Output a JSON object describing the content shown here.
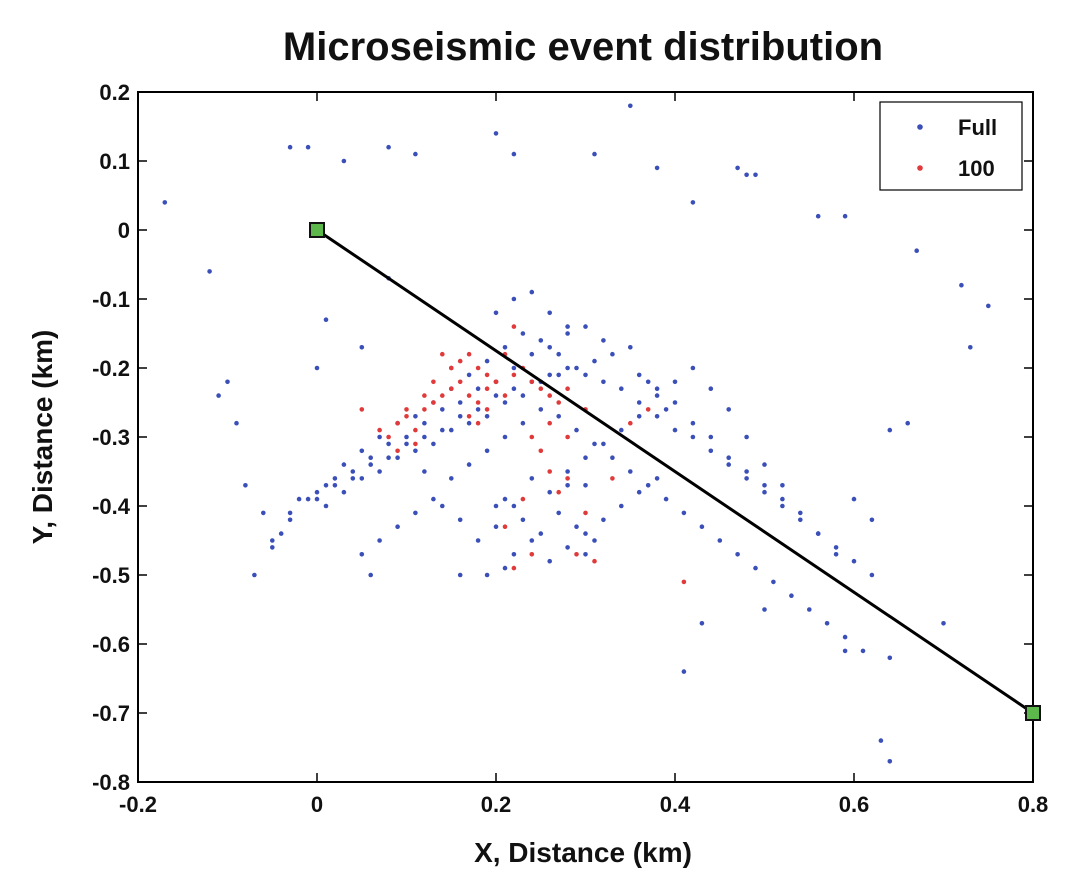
{
  "chart_data": {
    "type": "scatter",
    "title": "Microseismic event distribution",
    "xlabel": "X, Distance (km)",
    "ylabel": "Y, Distance (km)",
    "xlim": [
      -0.2,
      0.8
    ],
    "ylim": [
      -0.8,
      0.2
    ],
    "xticks": [
      -0.2,
      0,
      0.2,
      0.4,
      0.6,
      0.8
    ],
    "xtick_labels": [
      "-0.2",
      "0",
      "0.2",
      "0.4",
      "0.6",
      "0.8"
    ],
    "yticks": [
      0.2,
      0.1,
      0,
      -0.1,
      -0.2,
      -0.3,
      -0.4,
      -0.5,
      -0.6,
      -0.7,
      -0.8
    ],
    "ytick_labels": [
      "0.2",
      "0.1",
      "0",
      "-0.1",
      "-0.2",
      "-0.3",
      "-0.4",
      "-0.5",
      "-0.6",
      "-0.7",
      "-0.8"
    ],
    "grid": false,
    "legend_position": "top-right",
    "legend": [
      "Full",
      "100"
    ],
    "colors": {
      "full": "#3b4fb8",
      "sub100": "#e03a3a",
      "marker_fill": "#5cb84a",
      "line": "#000000"
    },
    "series": [
      {
        "name": "Full",
        "x": [
          -0.17,
          -0.12,
          -0.1,
          -0.08,
          -0.03,
          -0.01,
          0.03,
          0.08,
          0.11,
          0.2,
          0.22,
          0.31,
          0.35,
          0.38,
          0.42,
          0.47,
          0.48,
          0.49,
          0.56,
          0.59,
          0.67,
          0.72,
          0.75,
          0.73,
          0.64,
          0.63,
          0.64,
          0.7,
          0.59,
          0.41,
          0.43,
          0.5,
          0.3,
          0.21,
          0.16,
          0.19,
          0.06,
          0.0,
          0.01,
          0.05,
          0.08,
          -0.11,
          -0.09,
          -0.07,
          -0.05,
          -0.04,
          -0.06,
          -0.03,
          -0.02,
          0.0,
          0.02,
          0.04,
          0.06,
          0.08,
          0.1,
          0.12,
          0.14,
          0.16,
          0.18,
          0.2,
          0.22,
          0.24,
          0.26,
          0.28,
          0.3,
          0.32,
          0.34,
          0.36,
          0.38,
          0.4,
          0.42,
          0.44,
          0.46,
          0.48,
          0.5,
          0.52,
          0.54,
          0.56,
          0.58,
          0.6,
          0.62,
          0.01,
          0.03,
          0.05,
          0.07,
          0.09,
          0.11,
          0.13,
          0.15,
          0.17,
          0.19,
          0.21,
          0.23,
          0.25,
          0.27,
          0.29,
          0.31,
          0.33,
          0.35,
          0.37,
          0.39,
          0.2,
          0.22,
          0.24,
          0.26,
          0.28,
          0.25,
          0.27,
          0.23,
          0.21,
          0.19,
          0.17,
          0.15,
          0.13,
          0.11,
          0.09,
          0.07,
          0.05,
          0.03,
          0.01,
          -0.01,
          -0.03,
          -0.05,
          0.0,
          0.02,
          0.04,
          0.06,
          0.08,
          0.1,
          0.12,
          0.14,
          0.16,
          0.18,
          0.2,
          0.22,
          0.24,
          0.26,
          0.28,
          0.3,
          0.32,
          0.36,
          0.38,
          0.4,
          0.42,
          0.44,
          0.46,
          0.48,
          0.5,
          0.52,
          0.22,
          0.24,
          0.26,
          0.28,
          0.3,
          0.21,
          0.23,
          0.25,
          0.27,
          0.29,
          0.31,
          0.2,
          0.22,
          0.24,
          0.26,
          0.28,
          0.3,
          0.32,
          0.34,
          0.36,
          0.38,
          0.12,
          0.14,
          0.16,
          0.18,
          0.2,
          0.05,
          0.07,
          0.09,
          0.11,
          0.13,
          0.15,
          0.17,
          0.19,
          0.21,
          0.23,
          0.25,
          0.27,
          0.29,
          0.31,
          0.33,
          0.35,
          0.37,
          0.39,
          0.41,
          0.43,
          0.45,
          0.47,
          0.49,
          0.51,
          0.53,
          0.55,
          0.57,
          0.59,
          0.61,
          0.28,
          0.3,
          0.32,
          0.34,
          0.36,
          0.38,
          0.4,
          0.42,
          0.44,
          0.46,
          0.48,
          0.5,
          0.52,
          0.54,
          0.56,
          0.58,
          0.6,
          0.62,
          0.64,
          0.66
        ],
        "y": [
          0.04,
          -0.06,
          -0.22,
          -0.37,
          0.12,
          0.12,
          0.1,
          0.12,
          0.11,
          0.14,
          0.11,
          0.11,
          0.18,
          0.09,
          0.04,
          0.09,
          0.08,
          0.08,
          0.02,
          0.02,
          -0.03,
          -0.08,
          -0.11,
          -0.17,
          -0.62,
          -0.74,
          -0.77,
          -0.57,
          -0.61,
          -0.64,
          -0.57,
          -0.55,
          -0.47,
          -0.49,
          -0.5,
          -0.5,
          -0.5,
          -0.2,
          -0.13,
          -0.17,
          -0.07,
          -0.24,
          -0.28,
          -0.5,
          -0.46,
          -0.44,
          -0.41,
          -0.41,
          -0.39,
          -0.38,
          -0.36,
          -0.36,
          -0.34,
          -0.33,
          -0.31,
          -0.3,
          -0.29,
          -0.27,
          -0.26,
          -0.24,
          -0.23,
          -0.22,
          -0.21,
          -0.2,
          -0.21,
          -0.22,
          -0.23,
          -0.25,
          -0.27,
          -0.29,
          -0.3,
          -0.32,
          -0.34,
          -0.36,
          -0.38,
          -0.4,
          -0.42,
          -0.44,
          -0.46,
          -0.48,
          -0.5,
          -0.4,
          -0.38,
          -0.36,
          -0.35,
          -0.33,
          -0.32,
          -0.31,
          -0.29,
          -0.28,
          -0.27,
          -0.25,
          -0.24,
          -0.22,
          -0.21,
          -0.2,
          -0.19,
          -0.18,
          -0.17,
          -0.22,
          -0.26,
          -0.12,
          -0.1,
          -0.09,
          -0.12,
          -0.14,
          -0.16,
          -0.18,
          -0.15,
          -0.17,
          -0.19,
          -0.21,
          -0.23,
          -0.25,
          -0.27,
          -0.28,
          -0.3,
          -0.32,
          -0.34,
          -0.37,
          -0.39,
          -0.42,
          -0.45,
          -0.39,
          -0.37,
          -0.35,
          -0.33,
          -0.31,
          -0.3,
          -0.28,
          -0.26,
          -0.25,
          -0.23,
          -0.22,
          -0.2,
          -0.18,
          -0.17,
          -0.15,
          -0.14,
          -0.16,
          -0.21,
          -0.23,
          -0.25,
          -0.28,
          -0.3,
          -0.33,
          -0.35,
          -0.37,
          -0.39,
          -0.4,
          -0.36,
          -0.38,
          -0.35,
          -0.37,
          -0.39,
          -0.42,
          -0.44,
          -0.41,
          -0.43,
          -0.45,
          -0.4,
          -0.47,
          -0.45,
          -0.48,
          -0.46,
          -0.44,
          -0.42,
          -0.4,
          -0.38,
          -0.36,
          -0.35,
          -0.4,
          -0.42,
          -0.45,
          -0.43,
          -0.47,
          -0.45,
          -0.43,
          -0.41,
          -0.39,
          -0.36,
          -0.34,
          -0.32,
          -0.3,
          -0.28,
          -0.26,
          -0.27,
          -0.29,
          -0.31,
          -0.33,
          -0.35,
          -0.37,
          -0.39,
          -0.41,
          -0.43,
          -0.45,
          -0.47,
          -0.49,
          -0.51,
          -0.53,
          -0.55,
          -0.57,
          -0.59,
          -0.61,
          -0.37,
          -0.33,
          -0.31,
          -0.29,
          -0.27,
          -0.24,
          -0.22,
          -0.2,
          -0.23,
          -0.26,
          -0.3,
          -0.34,
          -0.37,
          -0.41,
          -0.44,
          -0.47,
          -0.39,
          -0.42,
          -0.29,
          -0.28
        ]
      },
      {
        "name": "100",
        "x": [
          0.05,
          0.07,
          0.08,
          0.09,
          0.1,
          0.11,
          0.12,
          0.13,
          0.14,
          0.15,
          0.16,
          0.17,
          0.18,
          0.19,
          0.2,
          0.21,
          0.22,
          0.23,
          0.24,
          0.25,
          0.26,
          0.27,
          0.28,
          0.16,
          0.17,
          0.18,
          0.19,
          0.2,
          0.14,
          0.15,
          0.13,
          0.12,
          0.1,
          0.11,
          0.09,
          0.17,
          0.18,
          0.19,
          0.21,
          0.22,
          0.24,
          0.25,
          0.26,
          0.27,
          0.23,
          0.28,
          0.3,
          0.29,
          0.31,
          0.33,
          0.35,
          0.37,
          0.41,
          0.22,
          0.24,
          0.21,
          0.26,
          0.28,
          0.3,
          0.15
        ],
        "y": [
          -0.26,
          -0.29,
          -0.3,
          -0.28,
          -0.27,
          -0.29,
          -0.26,
          -0.25,
          -0.24,
          -0.23,
          -0.22,
          -0.24,
          -0.25,
          -0.23,
          -0.22,
          -0.24,
          -0.21,
          -0.2,
          -0.22,
          -0.23,
          -0.24,
          -0.25,
          -0.23,
          -0.19,
          -0.18,
          -0.2,
          -0.21,
          -0.22,
          -0.18,
          -0.2,
          -0.22,
          -0.24,
          -0.26,
          -0.31,
          -0.32,
          -0.27,
          -0.28,
          -0.26,
          -0.18,
          -0.14,
          -0.3,
          -0.32,
          -0.35,
          -0.38,
          -0.39,
          -0.36,
          -0.41,
          -0.47,
          -0.48,
          -0.36,
          -0.28,
          -0.26,
          -0.51,
          -0.49,
          -0.47,
          -0.43,
          -0.28,
          -0.3,
          -0.26,
          -0.2
        ]
      }
    ],
    "well": {
      "x": [
        0,
        0.8
      ],
      "y": [
        0,
        -0.7
      ]
    }
  }
}
